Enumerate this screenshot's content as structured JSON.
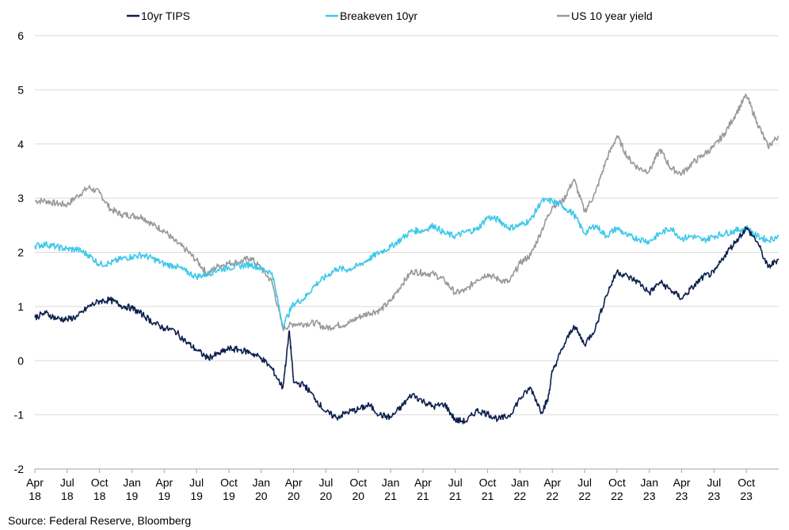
{
  "chart_data": {
    "type": "line",
    "title": "",
    "xlabel": "",
    "ylabel": "",
    "ylim": [
      -2,
      6
    ],
    "y_ticks": [
      -2,
      -1,
      0,
      1,
      2,
      3,
      4,
      5,
      6
    ],
    "grid": true,
    "legend_position": "top",
    "x_ticks": [
      {
        "month": "Apr",
        "year": "18",
        "date": "2018-04"
      },
      {
        "month": "Jul",
        "year": "18",
        "date": "2018-07"
      },
      {
        "month": "Oct",
        "year": "18",
        "date": "2018-10"
      },
      {
        "month": "Jan",
        "year": "19",
        "date": "2019-01"
      },
      {
        "month": "Apr",
        "year": "19",
        "date": "2019-04"
      },
      {
        "month": "Jul",
        "year": "19",
        "date": "2019-07"
      },
      {
        "month": "Oct",
        "year": "19",
        "date": "2019-10"
      },
      {
        "month": "Jan",
        "year": "20",
        "date": "2020-01"
      },
      {
        "month": "Apr",
        "year": "20",
        "date": "2020-04"
      },
      {
        "month": "Jul",
        "year": "20",
        "date": "2020-07"
      },
      {
        "month": "Oct",
        "year": "20",
        "date": "2020-10"
      },
      {
        "month": "Jan",
        "year": "21",
        "date": "2021-01"
      },
      {
        "month": "Apr",
        "year": "21",
        "date": "2021-04"
      },
      {
        "month": "Jul",
        "year": "21",
        "date": "2021-07"
      },
      {
        "month": "Oct",
        "year": "21",
        "date": "2021-10"
      },
      {
        "month": "Jan",
        "year": "22",
        "date": "2022-01"
      },
      {
        "month": "Apr",
        "year": "22",
        "date": "2022-04"
      },
      {
        "month": "Jul",
        "year": "22",
        "date": "2022-07"
      },
      {
        "month": "Oct",
        "year": "22",
        "date": "2022-10"
      },
      {
        "month": "Jan",
        "year": "23",
        "date": "2023-01"
      },
      {
        "month": "Apr",
        "year": "23",
        "date": "2023-04"
      },
      {
        "month": "Jul",
        "year": "23",
        "date": "2023-07"
      },
      {
        "month": "Oct",
        "year": "23",
        "date": "2023-10"
      }
    ],
    "x_range": [
      "2018-04",
      "2024-01"
    ],
    "series": [
      {
        "name": "10yr TIPS",
        "color": "#0d1f4e",
        "points": [
          [
            "2018-04",
            0.8
          ],
          [
            "2018-05",
            0.88
          ],
          [
            "2018-06",
            0.78
          ],
          [
            "2018-07",
            0.76
          ],
          [
            "2018-08",
            0.82
          ],
          [
            "2018-09",
            1.0
          ],
          [
            "2018-10",
            1.1
          ],
          [
            "2018-11",
            1.12
          ],
          [
            "2018-12",
            1.02
          ],
          [
            "2019-01",
            0.97
          ],
          [
            "2019-02",
            0.85
          ],
          [
            "2019-03",
            0.7
          ],
          [
            "2019-04",
            0.6
          ],
          [
            "2019-05",
            0.55
          ],
          [
            "2019-06",
            0.35
          ],
          [
            "2019-07",
            0.2
          ],
          [
            "2019-08",
            0.05
          ],
          [
            "2019-09",
            0.12
          ],
          [
            "2019-10",
            0.22
          ],
          [
            "2019-11",
            0.2
          ],
          [
            "2019-12",
            0.15
          ],
          [
            "2020-01",
            0.05
          ],
          [
            "2020-02",
            -0.15
          ],
          [
            "2020-03",
            -0.5
          ],
          [
            "2020-03-20",
            0.55
          ],
          [
            "2020-04",
            -0.4
          ],
          [
            "2020-05",
            -0.45
          ],
          [
            "2020-06",
            -0.7
          ],
          [
            "2020-07",
            -0.95
          ],
          [
            "2020-08",
            -1.05
          ],
          [
            "2020-09",
            -0.95
          ],
          [
            "2020-10",
            -0.9
          ],
          [
            "2020-11",
            -0.82
          ],
          [
            "2020-12",
            -1.0
          ],
          [
            "2021-01",
            -1.05
          ],
          [
            "2021-02",
            -0.85
          ],
          [
            "2021-03",
            -0.62
          ],
          [
            "2021-04",
            -0.75
          ],
          [
            "2021-05",
            -0.85
          ],
          [
            "2021-06",
            -0.8
          ],
          [
            "2021-07",
            -1.1
          ],
          [
            "2021-08",
            -1.12
          ],
          [
            "2021-09",
            -0.92
          ],
          [
            "2021-10",
            -0.98
          ],
          [
            "2021-11",
            -1.08
          ],
          [
            "2021-12",
            -1.02
          ],
          [
            "2022-01",
            -0.7
          ],
          [
            "2022-02",
            -0.5
          ],
          [
            "2022-03",
            -0.95
          ],
          [
            "2022-03-20",
            -0.7
          ],
          [
            "2022-04",
            -0.2
          ],
          [
            "2022-05",
            0.25
          ],
          [
            "2022-06",
            0.65
          ],
          [
            "2022-07",
            0.3
          ],
          [
            "2022-08",
            0.6
          ],
          [
            "2022-09",
            1.2
          ],
          [
            "2022-10",
            1.65
          ],
          [
            "2022-11",
            1.55
          ],
          [
            "2022-12",
            1.45
          ],
          [
            "2023-01",
            1.25
          ],
          [
            "2023-02",
            1.45
          ],
          [
            "2023-03",
            1.3
          ],
          [
            "2023-04",
            1.15
          ],
          [
            "2023-05",
            1.35
          ],
          [
            "2023-06",
            1.55
          ],
          [
            "2023-07",
            1.62
          ],
          [
            "2023-08",
            1.95
          ],
          [
            "2023-09",
            2.2
          ],
          [
            "2023-10",
            2.45
          ],
          [
            "2023-11",
            2.2
          ],
          [
            "2023-12",
            1.72
          ],
          [
            "2024-01",
            1.88
          ]
        ]
      },
      {
        "name": "Breakeven 10yr",
        "color": "#3ec8ea",
        "points": [
          [
            "2018-04",
            2.12
          ],
          [
            "2018-05",
            2.15
          ],
          [
            "2018-06",
            2.1
          ],
          [
            "2018-07",
            2.06
          ],
          [
            "2018-08",
            2.05
          ],
          [
            "2018-09",
            1.95
          ],
          [
            "2018-10",
            1.78
          ],
          [
            "2018-11",
            1.8
          ],
          [
            "2018-12",
            1.88
          ],
          [
            "2019-01",
            1.92
          ],
          [
            "2019-02",
            1.95
          ],
          [
            "2019-03",
            1.88
          ],
          [
            "2019-04",
            1.78
          ],
          [
            "2019-05",
            1.75
          ],
          [
            "2019-06",
            1.65
          ],
          [
            "2019-07",
            1.55
          ],
          [
            "2019-08",
            1.6
          ],
          [
            "2019-09",
            1.68
          ],
          [
            "2019-10",
            1.72
          ],
          [
            "2019-11",
            1.75
          ],
          [
            "2019-12",
            1.78
          ],
          [
            "2020-01",
            1.7
          ],
          [
            "2020-02",
            1.62
          ],
          [
            "2020-03",
            0.65
          ],
          [
            "2020-04",
            1.05
          ],
          [
            "2020-05",
            1.15
          ],
          [
            "2020-06",
            1.4
          ],
          [
            "2020-07",
            1.55
          ],
          [
            "2020-08",
            1.7
          ],
          [
            "2020-09",
            1.68
          ],
          [
            "2020-10",
            1.75
          ],
          [
            "2020-11",
            1.88
          ],
          [
            "2020-12",
            2.0
          ],
          [
            "2021-01",
            2.1
          ],
          [
            "2021-02",
            2.25
          ],
          [
            "2021-03",
            2.4
          ],
          [
            "2021-04",
            2.4
          ],
          [
            "2021-05",
            2.5
          ],
          [
            "2021-06",
            2.35
          ],
          [
            "2021-07",
            2.3
          ],
          [
            "2021-08",
            2.38
          ],
          [
            "2021-09",
            2.42
          ],
          [
            "2021-10",
            2.65
          ],
          [
            "2021-11",
            2.6
          ],
          [
            "2021-12",
            2.45
          ],
          [
            "2022-01",
            2.5
          ],
          [
            "2022-02",
            2.6
          ],
          [
            "2022-03",
            2.95
          ],
          [
            "2022-04",
            2.95
          ],
          [
            "2022-05",
            2.85
          ],
          [
            "2022-06",
            2.7
          ],
          [
            "2022-07",
            2.35
          ],
          [
            "2022-08",
            2.5
          ],
          [
            "2022-09",
            2.3
          ],
          [
            "2022-10",
            2.45
          ],
          [
            "2022-11",
            2.3
          ],
          [
            "2022-12",
            2.25
          ],
          [
            "2023-01",
            2.2
          ],
          [
            "2023-02",
            2.35
          ],
          [
            "2023-03",
            2.45
          ],
          [
            "2023-04",
            2.25
          ],
          [
            "2023-05",
            2.3
          ],
          [
            "2023-06",
            2.22
          ],
          [
            "2023-07",
            2.3
          ],
          [
            "2023-08",
            2.35
          ],
          [
            "2023-09",
            2.4
          ],
          [
            "2023-10",
            2.45
          ],
          [
            "2023-11",
            2.3
          ],
          [
            "2023-12",
            2.22
          ],
          [
            "2024-01",
            2.3
          ]
        ]
      },
      {
        "name": "US 10 year yield",
        "color": "#999999",
        "points": [
          [
            "2018-04",
            2.95
          ],
          [
            "2018-05",
            2.95
          ],
          [
            "2018-06",
            2.9
          ],
          [
            "2018-07",
            2.88
          ],
          [
            "2018-08",
            3.05
          ],
          [
            "2018-09",
            3.2
          ],
          [
            "2018-10",
            3.1
          ],
          [
            "2018-11",
            2.8
          ],
          [
            "2018-12",
            2.7
          ],
          [
            "2019-01",
            2.68
          ],
          [
            "2019-02",
            2.65
          ],
          [
            "2019-03",
            2.5
          ],
          [
            "2019-04",
            2.4
          ],
          [
            "2019-05",
            2.2
          ],
          [
            "2019-06",
            2.05
          ],
          [
            "2019-07",
            1.85
          ],
          [
            "2019-08",
            1.6
          ],
          [
            "2019-09",
            1.75
          ],
          [
            "2019-10",
            1.8
          ],
          [
            "2019-11",
            1.82
          ],
          [
            "2019-12",
            1.9
          ],
          [
            "2020-01",
            1.7
          ],
          [
            "2020-02",
            1.45
          ],
          [
            "2020-03",
            0.6
          ],
          [
            "2020-04",
            0.68
          ],
          [
            "2020-05",
            0.68
          ],
          [
            "2020-06",
            0.7
          ],
          [
            "2020-07",
            0.6
          ],
          [
            "2020-08",
            0.65
          ],
          [
            "2020-09",
            0.68
          ],
          [
            "2020-10",
            0.8
          ],
          [
            "2020-11",
            0.88
          ],
          [
            "2020-12",
            0.93
          ],
          [
            "2021-01",
            1.1
          ],
          [
            "2021-02",
            1.4
          ],
          [
            "2021-03",
            1.65
          ],
          [
            "2021-04",
            1.62
          ],
          [
            "2021-05",
            1.6
          ],
          [
            "2021-06",
            1.48
          ],
          [
            "2021-07",
            1.25
          ],
          [
            "2021-08",
            1.3
          ],
          [
            "2021-09",
            1.5
          ],
          [
            "2021-10",
            1.6
          ],
          [
            "2021-11",
            1.5
          ],
          [
            "2021-12",
            1.45
          ],
          [
            "2022-01",
            1.8
          ],
          [
            "2022-02",
            1.95
          ],
          [
            "2022-03",
            2.4
          ],
          [
            "2022-04",
            2.85
          ],
          [
            "2022-05",
            2.95
          ],
          [
            "2022-06",
            3.35
          ],
          [
            "2022-07",
            2.75
          ],
          [
            "2022-08",
            3.1
          ],
          [
            "2022-09",
            3.7
          ],
          [
            "2022-10",
            4.15
          ],
          [
            "2022-11",
            3.75
          ],
          [
            "2022-12",
            3.55
          ],
          [
            "2023-01",
            3.5
          ],
          [
            "2023-02",
            3.9
          ],
          [
            "2023-03",
            3.55
          ],
          [
            "2023-04",
            3.45
          ],
          [
            "2023-05",
            3.65
          ],
          [
            "2023-06",
            3.8
          ],
          [
            "2023-07",
            3.95
          ],
          [
            "2023-08",
            4.2
          ],
          [
            "2023-09",
            4.55
          ],
          [
            "2023-10",
            4.9
          ],
          [
            "2023-11",
            4.4
          ],
          [
            "2023-12",
            3.95
          ],
          [
            "2024-01",
            4.15
          ]
        ]
      }
    ]
  },
  "source_note": "Source: Federal Reserve, Bloomberg"
}
